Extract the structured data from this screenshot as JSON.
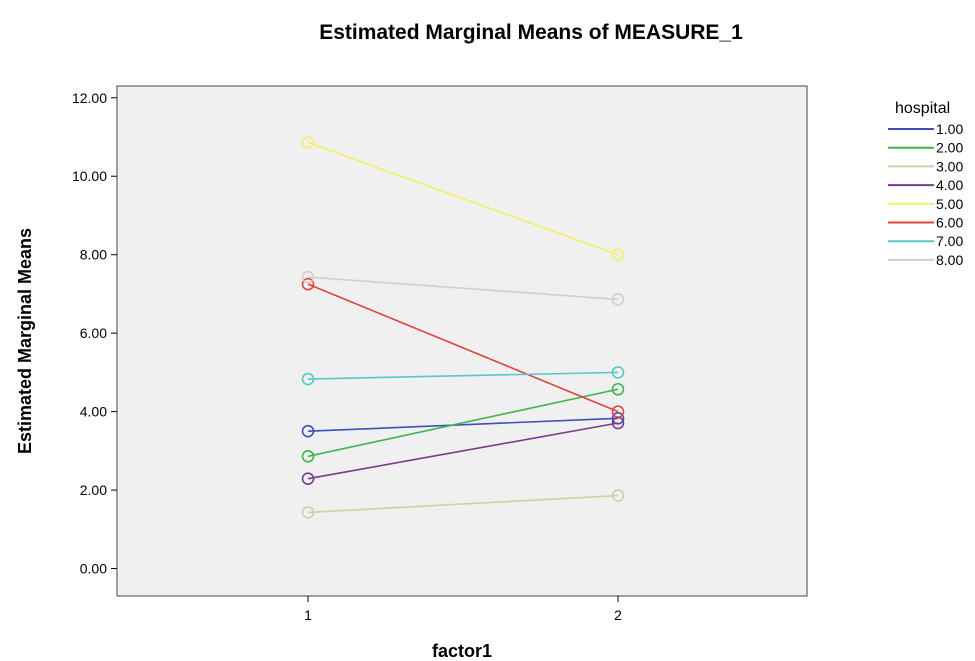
{
  "chart_data": {
    "type": "line",
    "title": "Estimated Marginal Means of MEASURE_1",
    "xlabel": "factor1",
    "ylabel": "Estimated Marginal Means",
    "categories": [
      "1",
      "2"
    ],
    "yticks": [
      "0.00",
      "2.00",
      "4.00",
      "6.00",
      "8.00",
      "10.00",
      "12.00"
    ],
    "ylim": [
      -0.7,
      12.3
    ],
    "grid": false,
    "legend": {
      "title": "hospital",
      "placement": "right"
    },
    "series": [
      {
        "name": "1.00",
        "values": [
          3.5,
          3.83
        ],
        "color": "#3d4fb8"
      },
      {
        "name": "2.00",
        "values": [
          2.86,
          4.57
        ],
        "color": "#3db54a"
      },
      {
        "name": "3.00",
        "values": [
          1.43,
          1.86
        ],
        "color": "#d2cfa0"
      },
      {
        "name": "4.00",
        "values": [
          2.29,
          3.71
        ],
        "color": "#7b3a8c"
      },
      {
        "name": "5.00",
        "values": [
          10.86,
          8.0
        ],
        "color": "#f2f25e"
      },
      {
        "name": "6.00",
        "values": [
          7.25,
          4.0
        ],
        "color": "#e8413c"
      },
      {
        "name": "7.00",
        "values": [
          4.83,
          5.0
        ],
        "color": "#55c8cc"
      },
      {
        "name": "8.00",
        "values": [
          7.43,
          6.86
        ],
        "color": "#cfcfcf"
      }
    ],
    "plot_background": "#f0f0f0"
  }
}
